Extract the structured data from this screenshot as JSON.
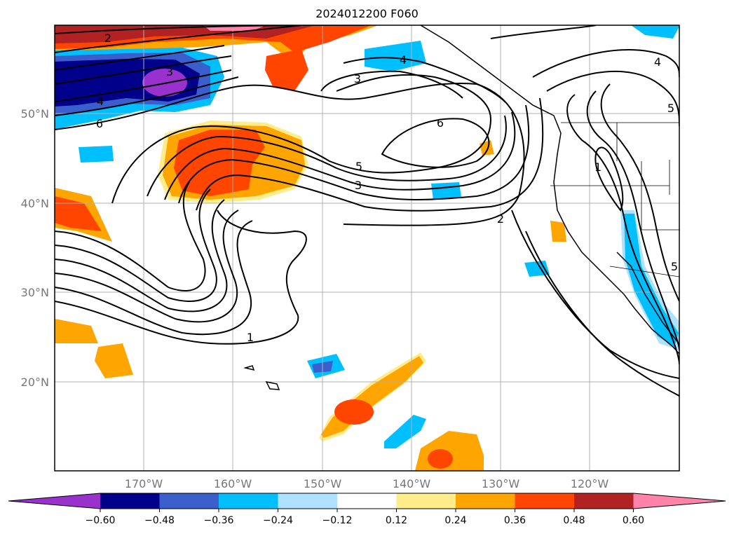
{
  "title": "2024012200 F060",
  "lat_labels": [
    "50°N",
    "40°N",
    "30°N",
    "20°N"
  ],
  "lon_labels": [
    "170°W",
    "160°W",
    "150°W",
    "140°W",
    "130°W",
    "120°W"
  ],
  "colorbar": {
    "ticks": [
      "−0.60",
      "−0.48",
      "−0.36",
      "−0.24",
      "−0.12",
      "0.12",
      "0.24",
      "0.36",
      "0.48",
      "0.60"
    ],
    "colors": [
      "#9932cc",
      "#00008b",
      "#3a5fcd",
      "#00bfff",
      "#b0e2ff",
      "#ffffff",
      "#ffec8b",
      "#ffa500",
      "#ff4500",
      "#b22222",
      "#ff82ab"
    ]
  },
  "contour_labels": [
    {
      "text": "2"
    },
    {
      "text": "3"
    },
    {
      "text": "4"
    },
    {
      "text": "4"
    },
    {
      "text": "6"
    },
    {
      "text": "3"
    },
    {
      "text": "6"
    },
    {
      "text": "5"
    },
    {
      "text": "3"
    },
    {
      "text": "2"
    },
    {
      "text": "1"
    },
    {
      "text": "1"
    },
    {
      "text": "4"
    },
    {
      "text": "5"
    },
    {
      "text": "5"
    }
  ]
}
